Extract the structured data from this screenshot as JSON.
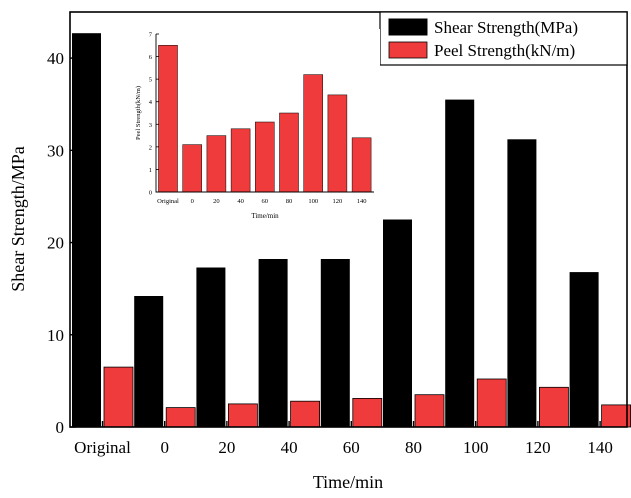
{
  "chart_data": [
    {
      "type": "bar",
      "title": "",
      "xlabel": "Time/min",
      "ylabel": "Shear Strength/MPa",
      "categories": [
        "Original",
        "0",
        "20",
        "40",
        "60",
        "80",
        "100",
        "120",
        "140"
      ],
      "ylim": [
        0,
        45
      ],
      "yticks": [
        "0",
        "10",
        "20",
        "30",
        "40"
      ],
      "legend": "top-right",
      "grid": false,
      "series": [
        {
          "name": "Shear Strength(MPa)",
          "color": "#000000",
          "values": [
            42.7,
            14.2,
            17.3,
            19.7,
            21.3,
            22.5,
            35.5,
            31.2,
            16.8
          ]
        },
        {
          "name": "Peel Strength(kN/m)",
          "color": "#ef3b3b",
          "values": [
            6.5,
            2.1,
            2.5,
            2.8,
            3.1,
            3.5,
            5.2,
            4.3,
            2.4
          ]
        }
      ]
    },
    {
      "type": "bar",
      "title": "",
      "xlabel": "Time/min",
      "ylabel": "Peel Strength(kN/m)",
      "categories": [
        "Original",
        "0",
        "20",
        "40",
        "60",
        "80",
        "100",
        "120",
        "140"
      ],
      "ylim": [
        0,
        7
      ],
      "yticks": [
        "0",
        "1",
        "2",
        "3",
        "4",
        "5",
        "6",
        "7"
      ],
      "grid": false,
      "series": [
        {
          "color": "#ef3b3b",
          "values": [
            6.5,
            2.1,
            2.5,
            2.8,
            3.1,
            3.5,
            5.2,
            4.3,
            2.4
          ]
        }
      ]
    }
  ]
}
